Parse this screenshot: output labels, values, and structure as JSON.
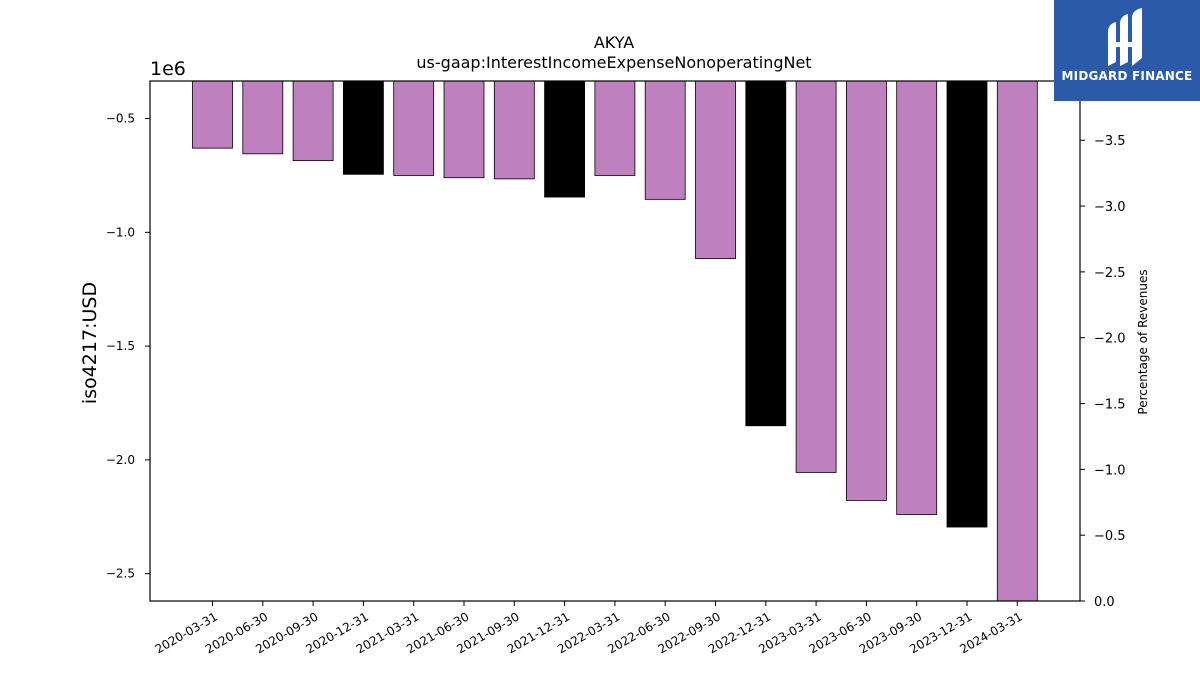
{
  "chart_data": {
    "type": "bar",
    "title": "AKYA",
    "subtitle": "us-gaap:InterestIncomeExpenseNonoperatingNet",
    "ylabel": "iso4217:USD",
    "y_offset_label": "1e6",
    "y2label": "Percentage of Revenues",
    "categories": [
      "2020-03-31",
      "2020-06-30",
      "2020-09-30",
      "2020-12-31",
      "2021-03-31",
      "2021-06-30",
      "2021-09-30",
      "2021-12-31",
      "2022-03-31",
      "2022-06-30",
      "2022-09-30",
      "2022-12-31",
      "2023-03-31",
      "2023-06-30",
      "2023-09-30",
      "2023-12-31",
      "2024-03-31"
    ],
    "values": [
      -630000,
      -655000,
      -685000,
      -745000,
      -750000,
      -760000,
      -765000,
      -845000,
      -750000,
      -855000,
      -1115000,
      -1850000,
      -2055000,
      -2178000,
      -2240000,
      -2295000,
      -2620000
    ],
    "bar_colors": [
      "#bf80bf",
      "#bf80bf",
      "#bf80bf",
      "#000000",
      "#bf80bf",
      "#bf80bf",
      "#bf80bf",
      "#000000",
      "#bf80bf",
      "#bf80bf",
      "#bf80bf",
      "#000000",
      "#bf80bf",
      "#bf80bf",
      "#bf80bf",
      "#000000",
      "#bf80bf"
    ],
    "ylim": [
      -2.62,
      -0.335
    ],
    "yticks": [
      -0.5,
      -1.0,
      -1.5,
      -2.0,
      -2.5
    ],
    "ytick_labels": [
      "−0.5",
      "−1.0",
      "−1.5",
      "−2.0",
      "−2.5"
    ],
    "y2lim": [
      0.0,
      -3.95
    ],
    "y2ticks": [
      -3.5,
      -3.0,
      -2.5,
      -2.0,
      -1.5,
      -1.0,
      -0.5,
      0.0
    ],
    "y2tick_labels": [
      "−3.5",
      "−3.0",
      "−2.5",
      "−2.0",
      "−1.5",
      "−1.0",
      "−0.5",
      "0.0"
    ],
    "grid": false,
    "legend": "none"
  },
  "logo": {
    "text": "MIDGARD FINANCE",
    "icon": "midgard-logo-icon",
    "color": "#2a5aa8"
  }
}
